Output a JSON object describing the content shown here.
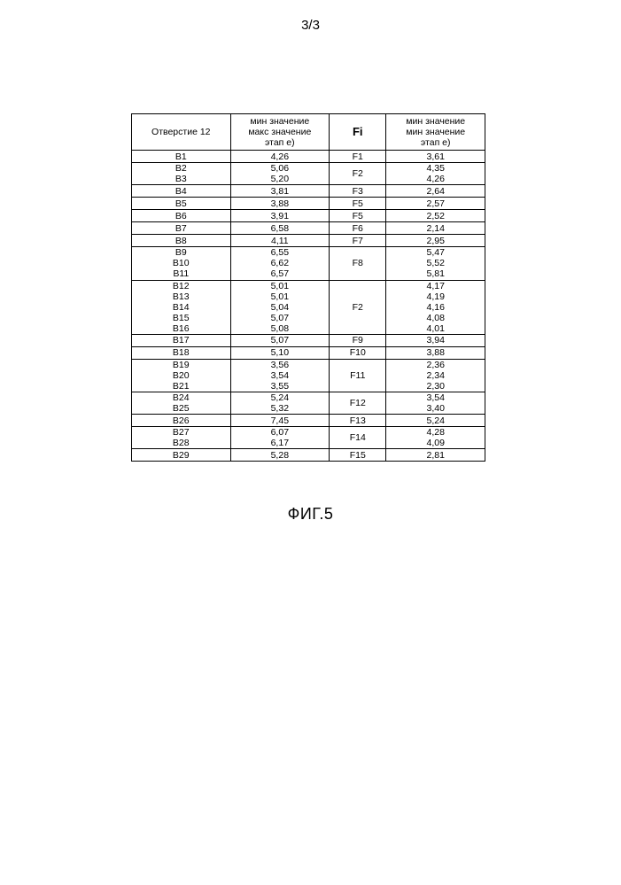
{
  "page_number": "3/3",
  "caption": "ФИГ.5",
  "table": {
    "headers": {
      "c1": "Отверстие 12",
      "c2_l1": "мин значение",
      "c2_l2": "макс значение",
      "c2_l3": "этап е)",
      "c3": "Fi",
      "c4_l1": "мин значение",
      "c4_l2": "мин значение",
      "c4_l3": "этап е)"
    },
    "groups": [
      {
        "f": "F1",
        "rows": [
          {
            "b": "B1",
            "v1": "4,26",
            "v2": "3,61"
          }
        ]
      },
      {
        "f": "F2",
        "rows": [
          {
            "b": "B2",
            "v1": "5,06",
            "v2": "4,35"
          },
          {
            "b": "B3",
            "v1": "5,20",
            "v2": "4,26"
          }
        ]
      },
      {
        "f": "F3",
        "rows": [
          {
            "b": "B4",
            "v1": "3,81",
            "v2": "2,64"
          }
        ]
      },
      {
        "f": "F5",
        "rows": [
          {
            "b": "B5",
            "v1": "3,88",
            "v2": "2,57"
          }
        ]
      },
      {
        "f": "F5",
        "rows": [
          {
            "b": "B6",
            "v1": "3,91",
            "v2": "2,52"
          }
        ]
      },
      {
        "f": "F6",
        "rows": [
          {
            "b": "B7",
            "v1": "6,58",
            "v2": "2,14"
          }
        ]
      },
      {
        "f": "F7",
        "rows": [
          {
            "b": "B8",
            "v1": "4,11",
            "v2": "2,95"
          }
        ]
      },
      {
        "f": "F8",
        "rows": [
          {
            "b": "B9",
            "v1": "6,55",
            "v2": "5,47"
          },
          {
            "b": "B10",
            "v1": "6,62",
            "v2": "5,52"
          },
          {
            "b": "B11",
            "v1": "6,57",
            "v2": "5,81"
          }
        ]
      },
      {
        "f": "F2",
        "rows": [
          {
            "b": "B12",
            "v1": "5,01",
            "v2": "4,17"
          },
          {
            "b": "B13",
            "v1": "5,01",
            "v2": "4,19"
          },
          {
            "b": "B14",
            "v1": "5,04",
            "v2": "4,16"
          },
          {
            "b": "B15",
            "v1": "5,07",
            "v2": "4,08"
          },
          {
            "b": "B16",
            "v1": "5,08",
            "v2": "4,01"
          }
        ]
      },
      {
        "f": "F9",
        "rows": [
          {
            "b": "B17",
            "v1": "5,07",
            "v2": "3,94"
          }
        ]
      },
      {
        "f": "F10",
        "rows": [
          {
            "b": "B18",
            "v1": "5,10",
            "v2": "3,88"
          }
        ]
      },
      {
        "f": "F11",
        "rows": [
          {
            "b": "B19",
            "v1": "3,56",
            "v2": "2,36"
          },
          {
            "b": "B20",
            "v1": "3,54",
            "v2": "2,34"
          },
          {
            "b": "B21",
            "v1": "3,55",
            "v2": "2,30"
          }
        ]
      },
      {
        "f": "F12",
        "rows": [
          {
            "b": "B24",
            "v1": "5,24",
            "v2": "3,54"
          },
          {
            "b": "B25",
            "v1": "5,32",
            "v2": "3,40"
          }
        ]
      },
      {
        "f": "F13",
        "rows": [
          {
            "b": "B26",
            "v1": "7,45",
            "v2": "5,24"
          }
        ]
      },
      {
        "f": "F14",
        "rows": [
          {
            "b": "B27",
            "v1": "6,07",
            "v2": "4,28"
          },
          {
            "b": "B28",
            "v1": "6,17",
            "v2": "4,09"
          }
        ]
      },
      {
        "f": "F15",
        "rows": [
          {
            "b": "B29",
            "v1": "5,28",
            "v2": "2,81"
          }
        ]
      }
    ]
  }
}
